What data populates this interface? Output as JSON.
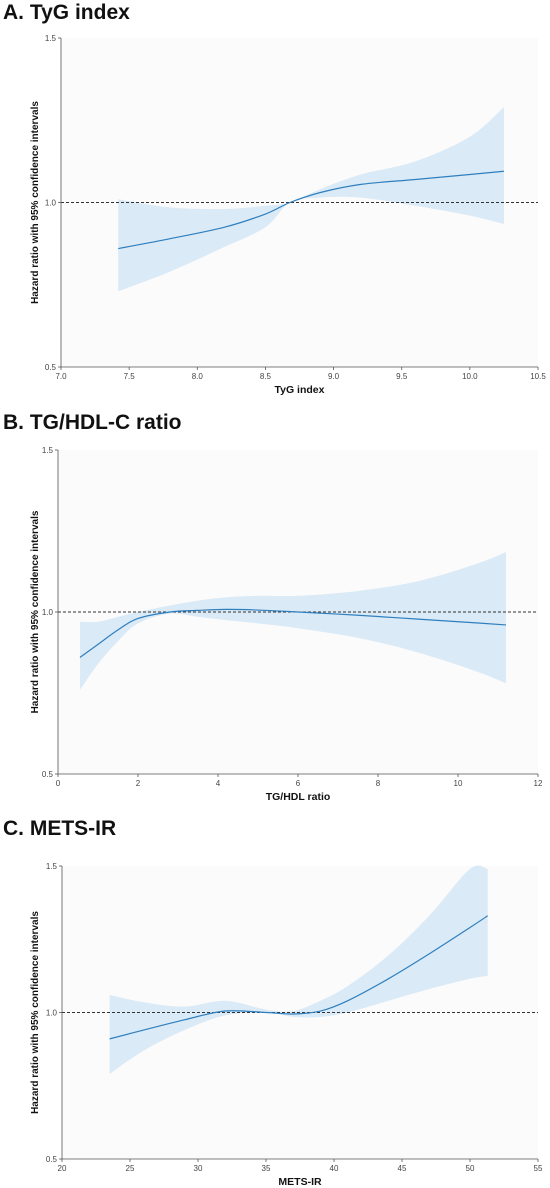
{
  "chart_data": [
    {
      "panel_title": "A. TyG index",
      "type": "line",
      "xlabel": "TyG index",
      "ylabel": "Hazard ratio with 95% confidence intervals",
      "xlim": [
        7.0,
        10.5
      ],
      "ylim": [
        0.5,
        1.5
      ],
      "xticks": [
        "7.0",
        "7.5",
        "8.0",
        "8.5",
        "9.0",
        "9.5",
        "10.0",
        "10.5"
      ],
      "yticks": [
        "0.5",
        "1.0",
        "1.5"
      ],
      "reference_line": 1.0,
      "series": [
        {
          "x": [
            7.42,
            7.8,
            8.2,
            8.5,
            8.68,
            8.9,
            9.2,
            9.6,
            10.0,
            10.25
          ],
          "y": [
            0.86,
            0.89,
            0.925,
            0.965,
            1.0,
            1.03,
            1.055,
            1.07,
            1.085,
            1.095
          ],
          "lower": [
            0.73,
            0.79,
            0.865,
            0.925,
            1.0,
            1.015,
            1.015,
            0.99,
            0.96,
            0.935
          ],
          "upper": [
            1.01,
            0.985,
            0.98,
            0.99,
            1.0,
            1.04,
            1.085,
            1.125,
            1.2,
            1.29
          ]
        }
      ],
      "colors": {
        "line": "#2f7fbf",
        "band": "#d6e8f5"
      }
    },
    {
      "panel_title": "B. TG/HDL-C ratio",
      "type": "line",
      "xlabel": "TG/HDL ratio",
      "ylabel": "Hazard ratio with 95% confidence intervals",
      "xlim": [
        0,
        12
      ],
      "ylim": [
        0.5,
        1.5
      ],
      "xticks": [
        "0",
        "2",
        "4",
        "6",
        "8",
        "10",
        "12"
      ],
      "yticks": [
        "0.5",
        "1.0",
        "1.5"
      ],
      "reference_line": 1.0,
      "series": [
        {
          "x": [
            0.55,
            1.0,
            1.5,
            2.0,
            2.8,
            3.5,
            4.2,
            5.0,
            6.0,
            7.5,
            9.0,
            10.5,
            11.2
          ],
          "y": [
            0.86,
            0.9,
            0.945,
            0.98,
            1.0,
            1.005,
            1.008,
            1.006,
            1.0,
            0.99,
            0.978,
            0.966,
            0.96
          ],
          "lower": [
            0.76,
            0.84,
            0.91,
            0.965,
            0.995,
            0.985,
            0.975,
            0.965,
            0.95,
            0.92,
            0.875,
            0.815,
            0.78
          ],
          "upper": [
            0.97,
            0.97,
            0.985,
            1.0,
            1.02,
            1.035,
            1.045,
            1.05,
            1.05,
            1.065,
            1.095,
            1.15,
            1.185
          ]
        }
      ],
      "colors": {
        "line": "#2f7fbf",
        "band": "#d6e8f5"
      }
    },
    {
      "panel_title": "C. METS-IR",
      "type": "line",
      "xlabel": "METS-IR",
      "ylabel": "Hazard ratio with 95% confidence intervals",
      "xlim": [
        20,
        55
      ],
      "ylim": [
        0.5,
        1.5
      ],
      "xticks": [
        "20",
        "25",
        "30",
        "35",
        "40",
        "45",
        "50",
        "55"
      ],
      "yticks": [
        "0.5",
        "1.0",
        "1.5"
      ],
      "reference_line": 1.0,
      "series": [
        {
          "x": [
            23.5,
            26,
            29,
            32,
            35,
            37,
            39,
            41,
            44,
            47,
            50,
            51.3
          ],
          "y": [
            0.91,
            0.94,
            0.975,
            1.005,
            1.0,
            0.995,
            1.005,
            1.04,
            1.115,
            1.2,
            1.29,
            1.33
          ],
          "lower": [
            0.79,
            0.87,
            0.94,
            0.99,
            1.0,
            0.985,
            0.985,
            1.0,
            1.04,
            1.08,
            1.115,
            1.125
          ],
          "upper": [
            1.06,
            1.035,
            1.02,
            1.04,
            1.01,
            1.005,
            1.04,
            1.09,
            1.195,
            1.33,
            1.49,
            1.49
          ]
        }
      ],
      "colors": {
        "line": "#2f7fbf",
        "band": "#d6e8f5"
      }
    }
  ]
}
